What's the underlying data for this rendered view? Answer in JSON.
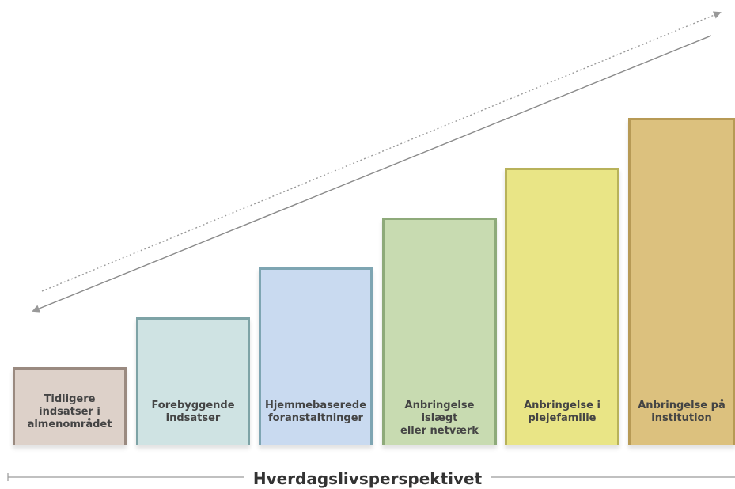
{
  "steps": [
    {
      "label": "Tidligere\nindsatser i\nalmenområdet",
      "fill": "#ddd1c9",
      "border": "#9a8a80"
    },
    {
      "label": "Forebyggende\nindsatser",
      "fill": "#cfe3e3",
      "border": "#7ea3a6"
    },
    {
      "label": "Hjemmebaserede\nforanstaltninger",
      "fill": "#c9daf0",
      "border": "#7ea5b2"
    },
    {
      "label": "Anbringelse islægt\neller netværk",
      "fill": "#c8dbb1",
      "border": "#8eaa7a"
    },
    {
      "label": "Anbringelse i\nplejefamilie",
      "fill": "#e9e586",
      "border": "#b8b25a"
    },
    {
      "label": "Anbringelse på\ninstitution",
      "fill": "#dcc17e",
      "border": "#b79a55"
    }
  ],
  "bottom_axis": {
    "label": "Hverdagslivsperspektivet"
  }
}
